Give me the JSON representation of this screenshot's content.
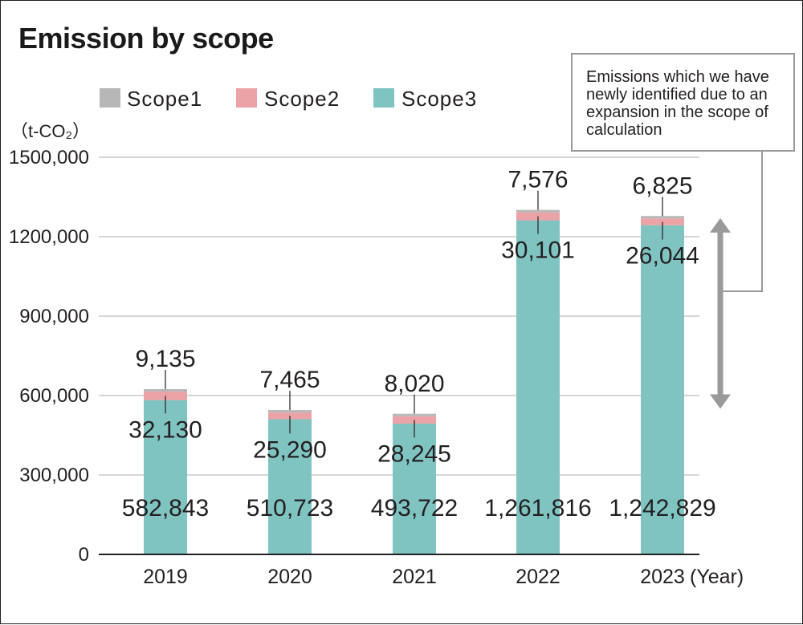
{
  "chart_data": {
    "type": "bar",
    "stacked": true,
    "title": "Emission by scope",
    "unit_label": "（t-CO₂）",
    "x_unit_label": "(Year)",
    "categories": [
      "2019",
      "2020",
      "2021",
      "2022",
      "2023"
    ],
    "series": [
      {
        "name": "Scope1",
        "color": "#b7b7b7",
        "values": [
          9135,
          7465,
          8020,
          7576,
          6825
        ],
        "labels": [
          "9,135",
          "7,465",
          "8,020",
          "7,576",
          "6,825"
        ]
      },
      {
        "name": "Scope2",
        "color": "#eba3a7",
        "values": [
          32130,
          25290,
          28245,
          30101,
          26044
        ],
        "labels": [
          "32,130",
          "25,290",
          "28,245",
          "30,101",
          "26,044"
        ]
      },
      {
        "name": "Scope3",
        "color": "#7fc4c0",
        "values": [
          582843,
          510723,
          493722,
          1261816,
          1242829
        ],
        "labels": [
          "582,843",
          "510,723",
          "493,722",
          "1,261,816",
          "1,242,829"
        ]
      }
    ],
    "ylim": [
      0,
      1500000
    ],
    "yticks": [
      0,
      300000,
      600000,
      900000,
      1200000,
      1500000
    ],
    "ytick_labels": [
      "0",
      "300,000",
      "600,000",
      "900,000",
      "1200,000",
      "1500,000"
    ],
    "grid": true,
    "legend_position": "top-left",
    "annotation": {
      "lines": [
        "Emissions which we have",
        "newly identified due to an",
        "expansion in the scope of",
        "calculation"
      ],
      "range_from": 550000,
      "range_to": 1270000
    }
  }
}
